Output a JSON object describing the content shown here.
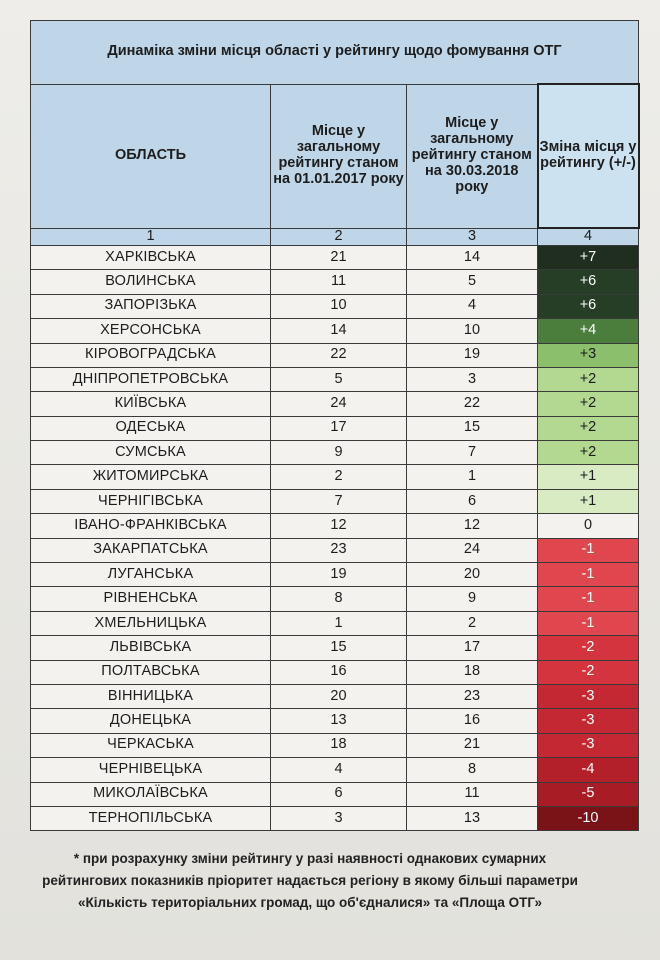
{
  "title": "Динаміка зміни місця області у рейтингу щодо фомування ОТГ",
  "headers": {
    "region": "ОБЛАСТЬ",
    "place2017": "Місце у загальному рейтингу станом на 01.01.2017 року",
    "place2018": "Місце у загальному рейтингу станом на 30.03.2018 року",
    "change": "Зміна місця у рейтингу (+/-)"
  },
  "column_numbers": [
    "1",
    "2",
    "3",
    "4"
  ],
  "rows": [
    {
      "region": "ХАРКІВСЬКА",
      "place2017": "21",
      "place2018": "14",
      "change": "+7",
      "color": "#1f2e1f",
      "text_color": "#ffffff"
    },
    {
      "region": "ВОЛИНСЬКА",
      "place2017": "11",
      "place2018": "5",
      "change": "+6",
      "color": "#263d26",
      "text_color": "#ffffff"
    },
    {
      "region": "ЗАПОРІЗЬКА",
      "place2017": "10",
      "place2018": "4",
      "change": "+6",
      "color": "#263d26",
      "text_color": "#ffffff"
    },
    {
      "region": "ХЕРСОНСЬКА",
      "place2017": "14",
      "place2018": "10",
      "change": "+4",
      "color": "#4b7d3c",
      "text_color": "#ffffff"
    },
    {
      "region": "КІРОВОГРАДСЬКА",
      "place2017": "22",
      "place2018": "19",
      "change": "+3",
      "color": "#8cbf6c",
      "text_color": "#1d1d1d"
    },
    {
      "region": "ДНІПРОПЕТРОВСЬКА",
      "place2017": "5",
      "place2018": "3",
      "change": "+2",
      "color": "#b3d88f",
      "text_color": "#1d1d1d"
    },
    {
      "region": "КИЇВСЬКА",
      "place2017": "24",
      "place2018": "22",
      "change": "+2",
      "color": "#b3d88f",
      "text_color": "#1d1d1d"
    },
    {
      "region": "ОДЕСЬКА",
      "place2017": "17",
      "place2018": "15",
      "change": "+2",
      "color": "#b3d88f",
      "text_color": "#1d1d1d"
    },
    {
      "region": "СУМСЬКА",
      "place2017": "9",
      "place2018": "7",
      "change": "+2",
      "color": "#b3d88f",
      "text_color": "#1d1d1d"
    },
    {
      "region": "ЖИТОМИРСЬКА",
      "place2017": "2",
      "place2018": "1",
      "change": "+1",
      "color": "#d8ebc3",
      "text_color": "#1d1d1d"
    },
    {
      "region": "ЧЕРНІГІВСЬКА",
      "place2017": "7",
      "place2018": "6",
      "change": "+1",
      "color": "#d8ebc3",
      "text_color": "#1d1d1d"
    },
    {
      "region": "ІВАНО-ФРАНКІВСЬКА",
      "place2017": "12",
      "place2018": "12",
      "change": "0",
      "color": "#f3f2ee",
      "text_color": "#1d1d1d"
    },
    {
      "region": "ЗАКАРПАТСЬКА",
      "place2017": "23",
      "place2018": "24",
      "change": "-1",
      "color": "#e0464e",
      "text_color": "#ffffff"
    },
    {
      "region": "ЛУГАНСЬКА",
      "place2017": "19",
      "place2018": "20",
      "change": "-1",
      "color": "#e0464e",
      "text_color": "#ffffff"
    },
    {
      "region": "РІВНЕНСЬКА",
      "place2017": "8",
      "place2018": "9",
      "change": "-1",
      "color": "#e0464e",
      "text_color": "#ffffff"
    },
    {
      "region": "ХМЕЛЬНИЦЬКА",
      "place2017": "1",
      "place2018": "2",
      "change": "-1",
      "color": "#e0464e",
      "text_color": "#ffffff"
    },
    {
      "region": "ЛЬВІВСЬКА",
      "place2017": "15",
      "place2018": "17",
      "change": "-2",
      "color": "#d3343d",
      "text_color": "#ffffff"
    },
    {
      "region": "ПОЛТАВСЬКА",
      "place2017": "16",
      "place2018": "18",
      "change": "-2",
      "color": "#d3343d",
      "text_color": "#ffffff"
    },
    {
      "region": "ВІННИЦЬКА",
      "place2017": "20",
      "place2018": "23",
      "change": "-3",
      "color": "#c42933",
      "text_color": "#ffffff"
    },
    {
      "region": "ДОНЕЦЬКА",
      "place2017": "13",
      "place2018": "16",
      "change": "-3",
      "color": "#c42933",
      "text_color": "#ffffff"
    },
    {
      "region": "ЧЕРКАСЬКА",
      "place2017": "18",
      "place2018": "21",
      "change": "-3",
      "color": "#c42933",
      "text_color": "#ffffff"
    },
    {
      "region": "ЧЕРНІВЕЦЬКА",
      "place2017": "4",
      "place2018": "8",
      "change": "-4",
      "color": "#b3202a",
      "text_color": "#ffffff"
    },
    {
      "region": "МИКОЛАЇВСЬКА",
      "place2017": "6",
      "place2018": "11",
      "change": "-5",
      "color": "#a81c25",
      "text_color": "#ffffff"
    },
    {
      "region": "ТЕРНОПІЛЬСЬКА",
      "place2017": "3",
      "place2018": "13",
      "change": "-10",
      "color": "#7a1318",
      "text_color": "#ffffff"
    }
  ],
  "footnote": "* при розрахунку зміни рейтингу у разі наявності однакових сумарних рейтингових показників пріоритет надається регіону в якому більші параметри «Кількість територіальних громад, що об'єдналися» та «Площа ОТГ»"
}
